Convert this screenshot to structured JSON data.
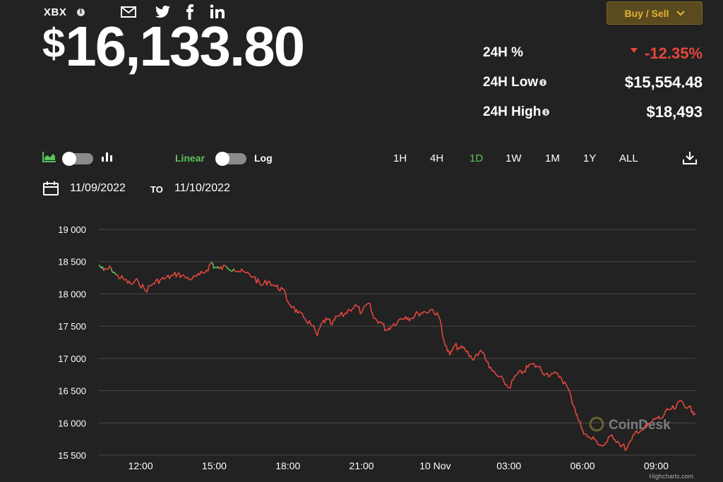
{
  "header": {
    "ticker": "XBX",
    "price_currency": "$",
    "price_value": "16,133.80",
    "buy_sell_label": "Buy / Sell"
  },
  "stats": {
    "change_label": "24H %",
    "change_value": "-12.35%",
    "low_label": "24H Low",
    "low_value": "$15,554.48",
    "high_label": "24H High",
    "high_value": "$18,493"
  },
  "controls": {
    "linear_label": "Linear",
    "log_label": "Log",
    "ranges": [
      "1H",
      "4H",
      "1D",
      "1W",
      "1M",
      "1Y",
      "ALL"
    ],
    "active_range": "1D",
    "date_from": "11/09/2022",
    "date_to_label": "TO",
    "date_to": "11/10/2022"
  },
  "colors": {
    "background": "#222222",
    "line_down": "#e3473d",
    "line_up": "#5cc25a",
    "accent_gold": "#e4b336"
  },
  "chart_data": {
    "type": "line",
    "y_tick_labels": [
      "19 000",
      "18 500",
      "18 000",
      "17 500",
      "17 000",
      "16 500",
      "16 000",
      "15 500"
    ],
    "y_ticks": [
      19000,
      18500,
      18000,
      17500,
      17000,
      16500,
      16000,
      15500
    ],
    "ylim": [
      15500,
      19000
    ],
    "x_tick_labels": [
      "12:00",
      "15:00",
      "18:00",
      "21:00",
      "10 Nov",
      "03:00",
      "06:00",
      "09:00"
    ],
    "x_ticks": [
      2,
      5,
      8,
      11,
      14,
      17,
      20,
      23
    ],
    "xlim": [
      0.3,
      24.6
    ],
    "x_unit": "hours from 11/09/2022 10:00",
    "grid": true,
    "legend": "none",
    "watermark": "CoinDesk",
    "credit": "Highcharts.com",
    "series": [
      {
        "x": [
          0.3,
          0.5,
          0.8,
          1.0,
          1.3,
          1.6,
          1.9,
          2.2,
          2.5,
          2.8,
          3.0,
          3.3,
          3.5,
          3.8,
          4.1,
          4.4,
          4.7,
          4.9,
          5.0,
          5.2,
          5.5,
          5.8,
          6.0,
          6.3,
          6.6,
          6.9,
          7.2,
          7.5,
          7.8,
          8.0,
          8.2,
          8.4,
          8.7,
          9.0,
          9.2,
          9.4,
          9.6,
          9.8,
          10.0,
          10.3,
          10.5,
          10.8,
          11.0,
          11.3,
          11.5,
          11.8,
          12.0,
          12.2,
          12.5,
          12.8,
          13.0,
          13.3,
          13.6,
          13.9,
          14.2,
          14.4,
          14.6,
          14.8,
          15.0,
          15.2,
          15.5,
          15.8,
          16.0,
          16.2,
          16.5,
          16.8,
          17.0,
          17.3,
          17.6,
          17.9,
          18.2,
          18.5,
          18.8,
          19.1,
          19.4,
          19.7,
          19.8,
          20.0,
          20.2,
          20.5,
          20.8,
          21.0,
          21.2,
          21.5,
          21.8,
          22.0,
          22.2,
          22.5,
          22.8,
          23.0,
          23.2,
          23.5,
          23.8,
          24.0,
          24.3,
          24.5,
          24.6
        ],
        "y": [
          18450,
          18360,
          18400,
          18290,
          18230,
          18150,
          18200,
          18050,
          18160,
          18220,
          18240,
          18280,
          18310,
          18260,
          18230,
          18290,
          18370,
          18490,
          18410,
          18390,
          18420,
          18390,
          18350,
          18320,
          18270,
          18130,
          18200,
          18110,
          18070,
          17880,
          17800,
          17700,
          17620,
          17500,
          17350,
          17560,
          17600,
          17520,
          17650,
          17680,
          17760,
          17820,
          17700,
          17860,
          17620,
          17560,
          17440,
          17500,
          17590,
          17650,
          17620,
          17700,
          17720,
          17760,
          17600,
          17200,
          17050,
          17200,
          17150,
          17150,
          16990,
          17100,
          17070,
          16850,
          16740,
          16640,
          16540,
          16740,
          16800,
          16910,
          16870,
          16760,
          16760,
          16720,
          16540,
          16210,
          16080,
          15900,
          15780,
          15740,
          15640,
          15700,
          15820,
          15680,
          15600,
          15730,
          15880,
          15900,
          16000,
          16080,
          16070,
          16200,
          16230,
          16350,
          16240,
          16180,
          16150
        ]
      }
    ]
  }
}
